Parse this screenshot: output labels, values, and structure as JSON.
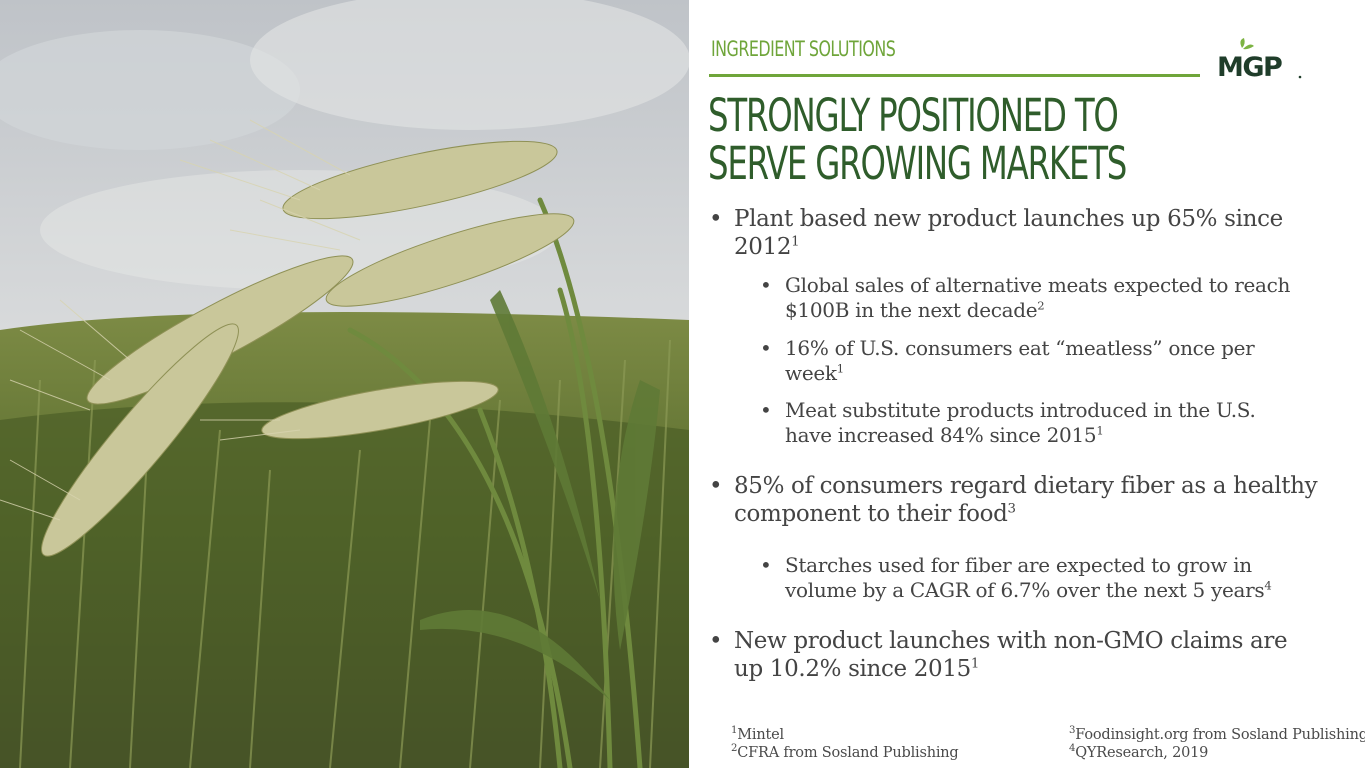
{
  "photo": {
    "icon": "wheat-field-photo"
  },
  "header": {
    "section_label": "INGREDIENT SOLUTIONS",
    "title_line1": "STRONGLY POSITIONED TO",
    "title_line2": "SERVE GROWING MARKETS",
    "brand_color": "#6fa53a",
    "title_color": "#2f5d2b"
  },
  "logo": {
    "text": "MGP",
    "icon": "mgp-leaf-logo"
  },
  "bullets": {
    "b1": {
      "line1": "Plant based new product launches up 65% since",
      "line2": "2012",
      "sup": "1"
    },
    "b1_sub1": {
      "line1": "Global sales of alternative meats expected to reach",
      "line2": "$100B in the next decade",
      "sup": "2"
    },
    "b1_sub2": {
      "line1": "16% of U.S. consumers eat “meatless” once per",
      "line2": "week",
      "sup": "1"
    },
    "b1_sub3": {
      "line1": "Meat substitute products introduced in the U.S.",
      "line2": "have increased 84% since 2015",
      "sup": "1"
    },
    "b2": {
      "line1": "85% of consumers regard dietary fiber as a healthy",
      "line2": "component to their food",
      "sup": "3"
    },
    "b2_sub1": {
      "line1": "Starches used for fiber are expected to grow in",
      "line2": "volume by a CAGR of 6.7% over the next 5 years",
      "sup": "4"
    },
    "b3": {
      "line1": "New product launches with non-GMO claims are",
      "line2": "up 10.2% since 2015",
      "sup": "1"
    }
  },
  "footnotes": {
    "f1": {
      "num": "1",
      "text": "Mintel"
    },
    "f2": {
      "num": "2",
      "text": "CFRA from Sosland Publishing"
    },
    "f3": {
      "num": "3",
      "text": "Foodinsight.org from Sosland Publishing"
    },
    "f4": {
      "num": "4",
      "text": "QYResearch, 2019"
    }
  }
}
